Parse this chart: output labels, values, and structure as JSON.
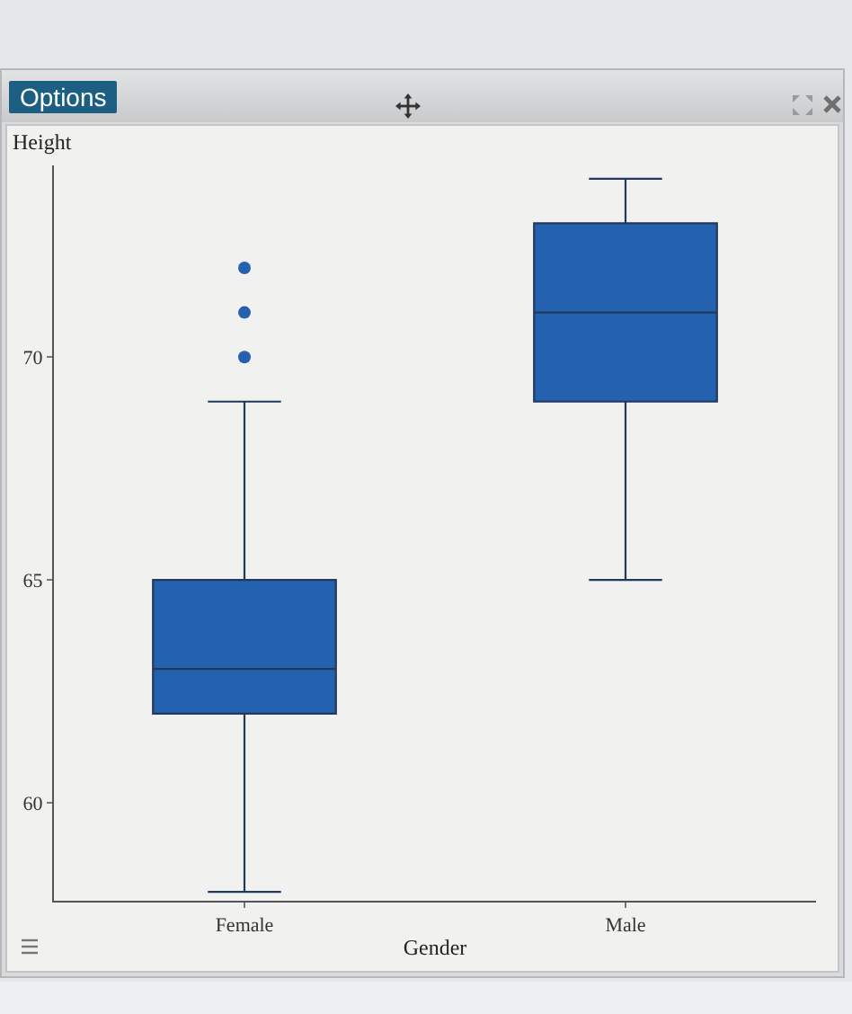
{
  "chart_data": {
    "type": "box",
    "xlabel": "Gender",
    "ylabel": "Height",
    "annotations": [
      "Options"
    ],
    "categories": [
      "Female",
      "Male"
    ],
    "color": "#2462b0",
    "marker": "circle",
    "boxes": [
      {
        "low": 58,
        "q1": 62,
        "median": 63,
        "q3": 65,
        "high": 69,
        "outliers": [
          70,
          71,
          72
        ]
      },
      {
        "low": 65,
        "q1": 69,
        "median": 71,
        "q3": 73,
        "high": 74
      }
    ],
    "ylim": [
      57.8,
      74.3
    ],
    "yticks": [
      60,
      65,
      70
    ]
  }
}
